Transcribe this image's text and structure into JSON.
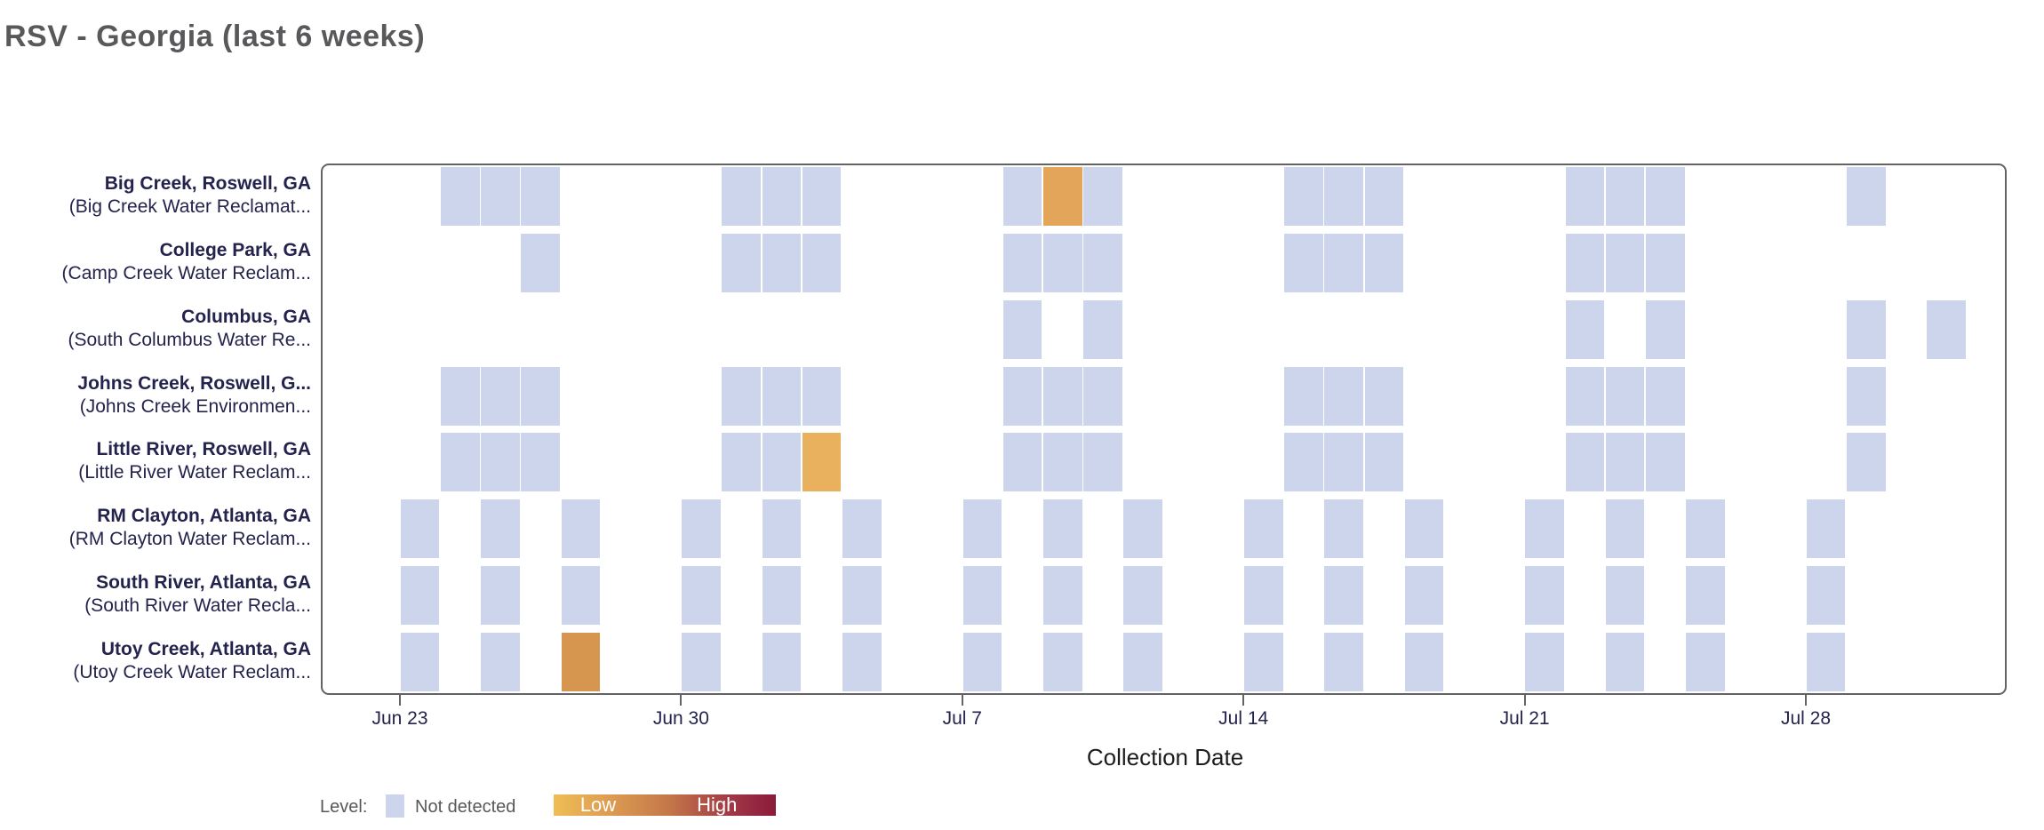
{
  "title": "RSV - Georgia (last 6 weeks)",
  "x_axis_title": "Collection Date",
  "legend": {
    "label": "Level:",
    "not_detected": "Not detected",
    "low": "Low",
    "high": "High"
  },
  "colors": {
    "not_detected": "#ccd5ec",
    "gradient_low": "#efbd55",
    "gradient_high": "#8b1b3a",
    "plot_border": "#636363",
    "axis_text": "#23234d",
    "title_text": "#59595b",
    "legend_text": "#58585a"
  },
  "chart_data": {
    "type": "heatmap",
    "title": "RSV - Georgia (last 6 weeks)",
    "xlabel": "Collection Date",
    "x_domain": [
      "Jun 21",
      "Aug 2"
    ],
    "grid": false,
    "legend_position": "bottom",
    "x_ticks": [
      {
        "label": "Jun 23",
        "day": 0
      },
      {
        "label": "Jun 30",
        "day": 7
      },
      {
        "label": "Jul 7",
        "day": 14
      },
      {
        "label": "Jul 14",
        "day": 21
      },
      {
        "label": "Jul 21",
        "day": 28
      },
      {
        "label": "Jul 28",
        "day": 35
      }
    ],
    "sites": [
      {
        "name": "Big Creek, Roswell, GA",
        "facility": "(Big Creek Water Reclamat...",
        "samples": [
          {
            "date": "Jun 24",
            "day": 1,
            "level": "Not detected"
          },
          {
            "date": "Jun 25",
            "day": 2,
            "level": "Not detected"
          },
          {
            "date": "Jun 26",
            "day": 3,
            "level": "Not detected"
          },
          {
            "date": "Jul 1",
            "day": 8,
            "level": "Not detected"
          },
          {
            "date": "Jul 2",
            "day": 9,
            "level": "Not detected"
          },
          {
            "date": "Jul 3",
            "day": 10,
            "level": "Not detected"
          },
          {
            "date": "Jul 8",
            "day": 15,
            "level": "Not detected"
          },
          {
            "date": "Jul 9",
            "day": 16,
            "level": "Low",
            "color": "#e2a55a"
          },
          {
            "date": "Jul 10",
            "day": 17,
            "level": "Not detected"
          },
          {
            "date": "Jul 15",
            "day": 22,
            "level": "Not detected"
          },
          {
            "date": "Jul 16",
            "day": 23,
            "level": "Not detected"
          },
          {
            "date": "Jul 17",
            "day": 24,
            "level": "Not detected"
          },
          {
            "date": "Jul 22",
            "day": 29,
            "level": "Not detected"
          },
          {
            "date": "Jul 23",
            "day": 30,
            "level": "Not detected"
          },
          {
            "date": "Jul 24",
            "day": 31,
            "level": "Not detected"
          },
          {
            "date": "Jul 29",
            "day": 36,
            "level": "Not detected"
          }
        ]
      },
      {
        "name": "College Park, GA",
        "facility": "(Camp Creek Water Reclam...",
        "samples": [
          {
            "date": "Jun 26",
            "day": 3,
            "level": "Not detected"
          },
          {
            "date": "Jul 1",
            "day": 8,
            "level": "Not detected"
          },
          {
            "date": "Jul 2",
            "day": 9,
            "level": "Not detected"
          },
          {
            "date": "Jul 3",
            "day": 10,
            "level": "Not detected"
          },
          {
            "date": "Jul 8",
            "day": 15,
            "level": "Not detected"
          },
          {
            "date": "Jul 9",
            "day": 16,
            "level": "Not detected"
          },
          {
            "date": "Jul 10",
            "day": 17,
            "level": "Not detected"
          },
          {
            "date": "Jul 15",
            "day": 22,
            "level": "Not detected"
          },
          {
            "date": "Jul 16",
            "day": 23,
            "level": "Not detected"
          },
          {
            "date": "Jul 17",
            "day": 24,
            "level": "Not detected"
          },
          {
            "date": "Jul 22",
            "day": 29,
            "level": "Not detected"
          },
          {
            "date": "Jul 23",
            "day": 30,
            "level": "Not detected"
          },
          {
            "date": "Jul 24",
            "day": 31,
            "level": "Not detected"
          }
        ]
      },
      {
        "name": "Columbus, GA",
        "facility": "(South Columbus Water Re...",
        "samples": [
          {
            "date": "Jul 8",
            "day": 15,
            "level": "Not detected"
          },
          {
            "date": "Jul 10",
            "day": 17,
            "level": "Not detected"
          },
          {
            "date": "Jul 22",
            "day": 29,
            "level": "Not detected"
          },
          {
            "date": "Jul 24",
            "day": 31,
            "level": "Not detected"
          },
          {
            "date": "Jul 29",
            "day": 36,
            "level": "Not detected"
          },
          {
            "date": "Jul 31",
            "day": 38,
            "level": "Not detected"
          }
        ]
      },
      {
        "name": "Johns Creek, Roswell, G...",
        "facility": "(Johns Creek Environmen...",
        "samples": [
          {
            "date": "Jun 24",
            "day": 1,
            "level": "Not detected"
          },
          {
            "date": "Jun 25",
            "day": 2,
            "level": "Not detected"
          },
          {
            "date": "Jun 26",
            "day": 3,
            "level": "Not detected"
          },
          {
            "date": "Jul 1",
            "day": 8,
            "level": "Not detected"
          },
          {
            "date": "Jul 2",
            "day": 9,
            "level": "Not detected"
          },
          {
            "date": "Jul 3",
            "day": 10,
            "level": "Not detected"
          },
          {
            "date": "Jul 8",
            "day": 15,
            "level": "Not detected"
          },
          {
            "date": "Jul 9",
            "day": 16,
            "level": "Not detected"
          },
          {
            "date": "Jul 10",
            "day": 17,
            "level": "Not detected"
          },
          {
            "date": "Jul 15",
            "day": 22,
            "level": "Not detected"
          },
          {
            "date": "Jul 16",
            "day": 23,
            "level": "Not detected"
          },
          {
            "date": "Jul 17",
            "day": 24,
            "level": "Not detected"
          },
          {
            "date": "Jul 22",
            "day": 29,
            "level": "Not detected"
          },
          {
            "date": "Jul 23",
            "day": 30,
            "level": "Not detected"
          },
          {
            "date": "Jul 24",
            "day": 31,
            "level": "Not detected"
          },
          {
            "date": "Jul 29",
            "day": 36,
            "level": "Not detected"
          }
        ]
      },
      {
        "name": "Little River, Roswell, GA",
        "facility": "(Little River Water Reclam...",
        "samples": [
          {
            "date": "Jun 24",
            "day": 1,
            "level": "Not detected"
          },
          {
            "date": "Jun 25",
            "day": 2,
            "level": "Not detected"
          },
          {
            "date": "Jun 26",
            "day": 3,
            "level": "Not detected"
          },
          {
            "date": "Jul 1",
            "day": 8,
            "level": "Not detected"
          },
          {
            "date": "Jul 2",
            "day": 9,
            "level": "Not detected"
          },
          {
            "date": "Jul 3",
            "day": 10,
            "level": "Low",
            "color": "#e9b15e"
          },
          {
            "date": "Jul 8",
            "day": 15,
            "level": "Not detected"
          },
          {
            "date": "Jul 9",
            "day": 16,
            "level": "Not detected"
          },
          {
            "date": "Jul 10",
            "day": 17,
            "level": "Not detected"
          },
          {
            "date": "Jul 15",
            "day": 22,
            "level": "Not detected"
          },
          {
            "date": "Jul 16",
            "day": 23,
            "level": "Not detected"
          },
          {
            "date": "Jul 17",
            "day": 24,
            "level": "Not detected"
          },
          {
            "date": "Jul 22",
            "day": 29,
            "level": "Not detected"
          },
          {
            "date": "Jul 23",
            "day": 30,
            "level": "Not detected"
          },
          {
            "date": "Jul 24",
            "day": 31,
            "level": "Not detected"
          },
          {
            "date": "Jul 29",
            "day": 36,
            "level": "Not detected"
          }
        ]
      },
      {
        "name": "RM Clayton, Atlanta, GA",
        "facility": "(RM Clayton Water Reclam...",
        "samples": [
          {
            "date": "Jun 23",
            "day": 0,
            "level": "Not detected"
          },
          {
            "date": "Jun 25",
            "day": 2,
            "level": "Not detected"
          },
          {
            "date": "Jun 27",
            "day": 4,
            "level": "Not detected"
          },
          {
            "date": "Jun 30",
            "day": 7,
            "level": "Not detected"
          },
          {
            "date": "Jul 2",
            "day": 9,
            "level": "Not detected"
          },
          {
            "date": "Jul 4",
            "day": 11,
            "level": "Not detected"
          },
          {
            "date": "Jul 7",
            "day": 14,
            "level": "Not detected"
          },
          {
            "date": "Jul 9",
            "day": 16,
            "level": "Not detected"
          },
          {
            "date": "Jul 11",
            "day": 18,
            "level": "Not detected"
          },
          {
            "date": "Jul 14",
            "day": 21,
            "level": "Not detected"
          },
          {
            "date": "Jul 16",
            "day": 23,
            "level": "Not detected"
          },
          {
            "date": "Jul 18",
            "day": 25,
            "level": "Not detected"
          },
          {
            "date": "Jul 21",
            "day": 28,
            "level": "Not detected"
          },
          {
            "date": "Jul 23",
            "day": 30,
            "level": "Not detected"
          },
          {
            "date": "Jul 25",
            "day": 32,
            "level": "Not detected"
          },
          {
            "date": "Jul 28",
            "day": 35,
            "level": "Not detected"
          }
        ]
      },
      {
        "name": "South River, Atlanta, GA",
        "facility": "(South River Water Recla...",
        "samples": [
          {
            "date": "Jun 23",
            "day": 0,
            "level": "Not detected"
          },
          {
            "date": "Jun 25",
            "day": 2,
            "level": "Not detected"
          },
          {
            "date": "Jun 27",
            "day": 4,
            "level": "Not detected"
          },
          {
            "date": "Jun 30",
            "day": 7,
            "level": "Not detected"
          },
          {
            "date": "Jul 2",
            "day": 9,
            "level": "Not detected"
          },
          {
            "date": "Jul 4",
            "day": 11,
            "level": "Not detected"
          },
          {
            "date": "Jul 7",
            "day": 14,
            "level": "Not detected"
          },
          {
            "date": "Jul 9",
            "day": 16,
            "level": "Not detected"
          },
          {
            "date": "Jul 11",
            "day": 18,
            "level": "Not detected"
          },
          {
            "date": "Jul 14",
            "day": 21,
            "level": "Not detected"
          },
          {
            "date": "Jul 16",
            "day": 23,
            "level": "Not detected"
          },
          {
            "date": "Jul 18",
            "day": 25,
            "level": "Not detected"
          },
          {
            "date": "Jul 21",
            "day": 28,
            "level": "Not detected"
          },
          {
            "date": "Jul 23",
            "day": 30,
            "level": "Not detected"
          },
          {
            "date": "Jul 25",
            "day": 32,
            "level": "Not detected"
          },
          {
            "date": "Jul 28",
            "day": 35,
            "level": "Not detected"
          }
        ]
      },
      {
        "name": "Utoy Creek, Atlanta, GA",
        "facility": "(Utoy Creek Water Reclam...",
        "samples": [
          {
            "date": "Jun 23",
            "day": 0,
            "level": "Not detected"
          },
          {
            "date": "Jun 25",
            "day": 2,
            "level": "Not detected"
          },
          {
            "date": "Jun 27",
            "day": 4,
            "level": "Low",
            "color": "#d79650"
          },
          {
            "date": "Jun 30",
            "day": 7,
            "level": "Not detected"
          },
          {
            "date": "Jul 2",
            "day": 9,
            "level": "Not detected"
          },
          {
            "date": "Jul 4",
            "day": 11,
            "level": "Not detected"
          },
          {
            "date": "Jul 7",
            "day": 14,
            "level": "Not detected"
          },
          {
            "date": "Jul 9",
            "day": 16,
            "level": "Not detected"
          },
          {
            "date": "Jul 11",
            "day": 18,
            "level": "Not detected"
          },
          {
            "date": "Jul 14",
            "day": 21,
            "level": "Not detected"
          },
          {
            "date": "Jul 16",
            "day": 23,
            "level": "Not detected"
          },
          {
            "date": "Jul 18",
            "day": 25,
            "level": "Not detected"
          },
          {
            "date": "Jul 21",
            "day": 28,
            "level": "Not detected"
          },
          {
            "date": "Jul 23",
            "day": 30,
            "level": "Not detected"
          },
          {
            "date": "Jul 25",
            "day": 32,
            "level": "Not detected"
          },
          {
            "date": "Jul 28",
            "day": 35,
            "level": "Not detected"
          }
        ]
      }
    ]
  }
}
